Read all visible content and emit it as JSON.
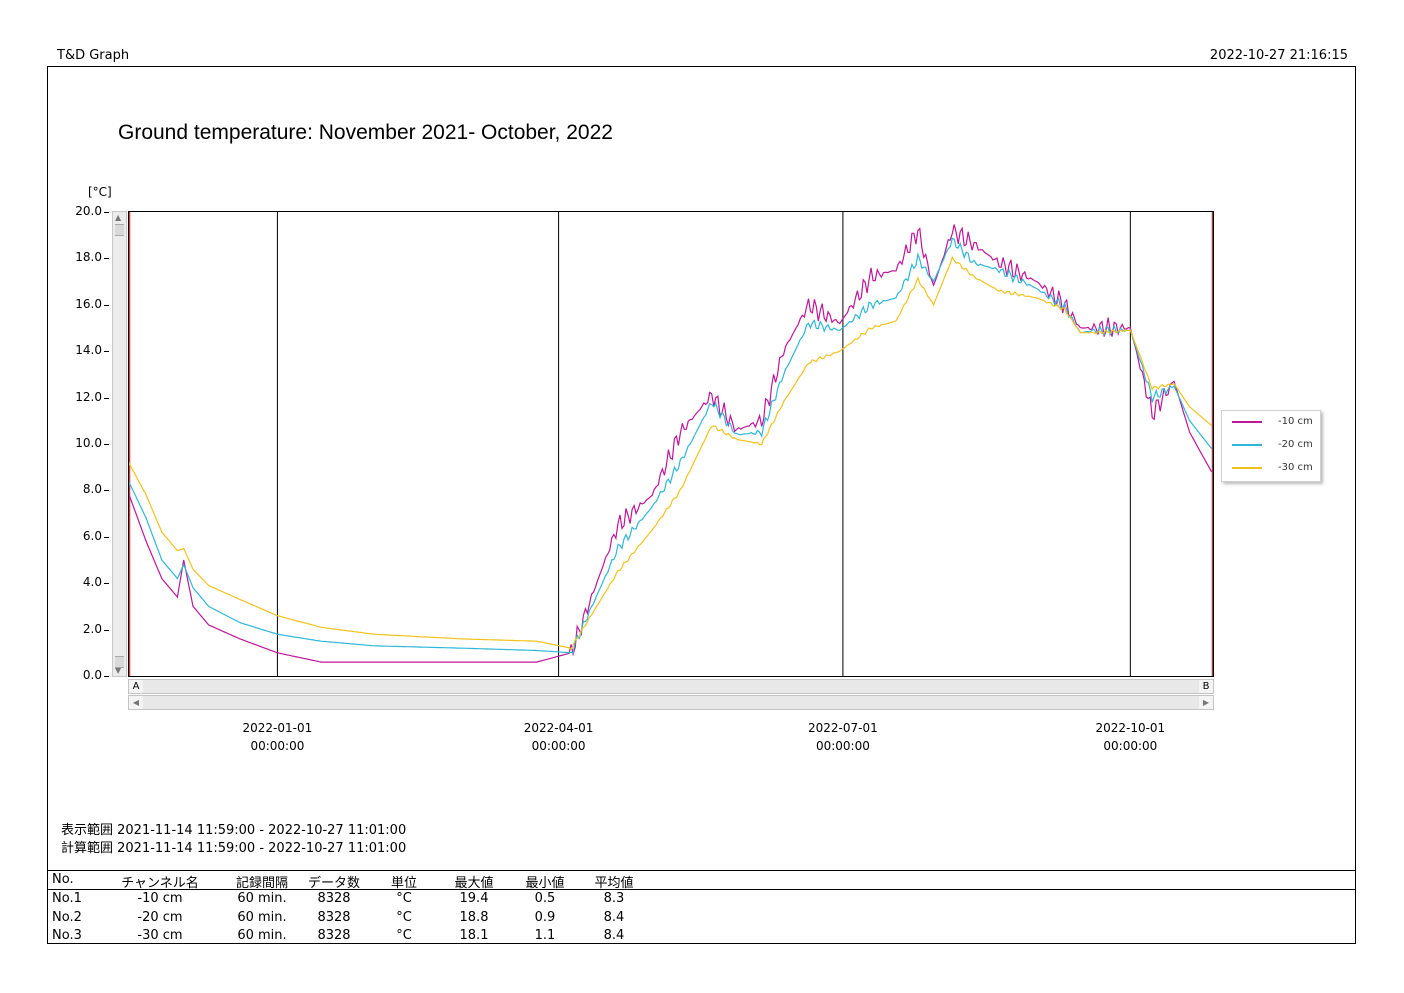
{
  "header": {
    "app_name": "T&D Graph",
    "timestamp": "2022-10-27 21:16:15"
  },
  "chart_data": {
    "type": "line",
    "title": "Ground temperature: November 2021- October, 2022",
    "ylabel": "[°C]",
    "ylim": [
      0,
      20
    ],
    "y_ticks": [
      "20.0",
      "18.0",
      "16.0",
      "14.0",
      "12.0",
      "10.0",
      "8.0",
      "6.0",
      "4.0",
      "2.0",
      "0.0"
    ],
    "xlim": [
      "2021-11-14 11:59:00",
      "2022-10-27 11:01:00"
    ],
    "x_ticks": [
      {
        "date": "2022-01-01",
        "time": "00:00:00"
      },
      {
        "date": "2022-04-01",
        "time": "00:00:00"
      },
      {
        "date": "2022-07-01",
        "time": "00:00:00"
      },
      {
        "date": "2022-10-01",
        "time": "00:00:00"
      }
    ],
    "grid": "vertical",
    "legend_position": "right",
    "x": [
      "2021-11-14",
      "2021-11-20",
      "2021-11-25",
      "2021-11-30",
      "2021-12-02",
      "2021-12-05",
      "2021-12-10",
      "2021-12-20",
      "2022-01-01",
      "2022-01-15",
      "2022-02-01",
      "2022-03-01",
      "2022-03-25",
      "2022-04-05",
      "2022-04-20",
      "2022-05-01",
      "2022-05-10",
      "2022-05-20",
      "2022-05-28",
      "2022-06-05",
      "2022-06-12",
      "2022-06-20",
      "2022-06-30",
      "2022-07-10",
      "2022-07-18",
      "2022-07-25",
      "2022-07-30",
      "2022-08-05",
      "2022-08-12",
      "2022-08-20",
      "2022-09-01",
      "2022-09-10",
      "2022-09-15",
      "2022-09-20",
      "2022-10-01",
      "2022-10-08",
      "2022-10-15",
      "2022-10-20",
      "2022-10-27"
    ],
    "series": [
      {
        "name": "-10 cm",
        "color": "#c0169a",
        "values": [
          8.0,
          5.8,
          4.2,
          3.4,
          5.0,
          3.0,
          2.2,
          1.6,
          1.0,
          0.6,
          0.6,
          0.6,
          0.6,
          1.0,
          6.5,
          7.8,
          10.5,
          12.1,
          10.6,
          11.0,
          14.0,
          16.0,
          15.2,
          17.2,
          17.5,
          19.2,
          16.8,
          19.2,
          18.6,
          17.8,
          17.0,
          16.0,
          15.0,
          15.0,
          15.0,
          11.3,
          12.7,
          10.5,
          8.8
        ]
      },
      {
        "name": "-20 cm",
        "color": "#2fb7d8",
        "values": [
          8.5,
          6.8,
          5.0,
          4.2,
          4.8,
          3.8,
          3.0,
          2.3,
          1.8,
          1.5,
          1.3,
          1.2,
          1.1,
          1.0,
          5.5,
          7.3,
          9.2,
          11.8,
          10.4,
          10.5,
          13.0,
          15.2,
          14.9,
          16.0,
          16.3,
          18.0,
          17.0,
          18.8,
          17.8,
          17.5,
          16.7,
          15.9,
          14.8,
          14.9,
          14.9,
          12.0,
          12.5,
          11.0,
          9.8
        ]
      },
      {
        "name": "-30 cm",
        "color": "#f2c21b",
        "values": [
          9.3,
          7.8,
          6.2,
          5.4,
          5.5,
          4.6,
          3.9,
          3.3,
          2.6,
          2.1,
          1.8,
          1.6,
          1.5,
          1.2,
          4.5,
          6.3,
          8.0,
          10.8,
          10.2,
          10.0,
          11.8,
          13.5,
          14.0,
          15.0,
          15.3,
          17.1,
          16.0,
          18.0,
          17.2,
          16.6,
          16.3,
          15.8,
          14.8,
          14.8,
          14.9,
          12.4,
          12.6,
          11.6,
          10.8
        ]
      }
    ]
  },
  "ranges": {
    "display": "表示範囲 2021-11-14 11:59:00 - 2022-10-27 11:01:00",
    "calc": "計算範囲 2021-11-14 11:59:00 - 2022-10-27 11:01:00"
  },
  "scroll": {
    "marker_a": "A",
    "marker_b": "B"
  },
  "table": {
    "headers": [
      "No.",
      "チャンネル名",
      "記録間隔",
      "データ数",
      "単位",
      "最大値",
      "最小値",
      "平均値"
    ],
    "rows": [
      [
        "No.1",
        "-10 cm",
        "60 min.",
        "8328",
        "°C",
        "19.4",
        "0.5",
        "8.3"
      ],
      [
        "No.2",
        "-20 cm",
        "60 min.",
        "8328",
        "°C",
        "18.8",
        "0.9",
        "8.4"
      ],
      [
        "No.3",
        "-30 cm",
        "60 min.",
        "8328",
        "°C",
        "18.1",
        "1.1",
        "8.4"
      ]
    ]
  }
}
